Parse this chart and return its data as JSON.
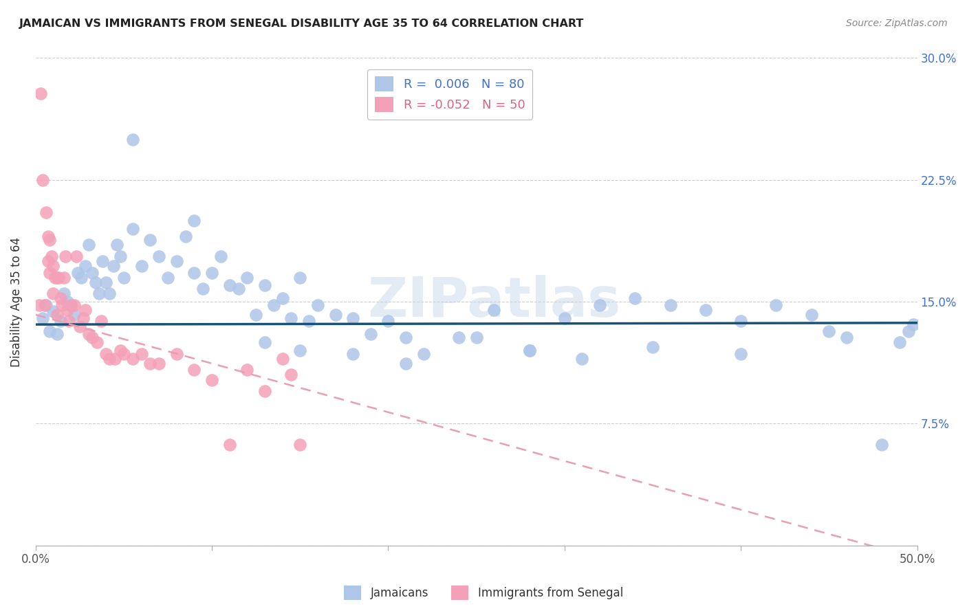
{
  "title": "JAMAICAN VS IMMIGRANTS FROM SENEGAL DISABILITY AGE 35 TO 64 CORRELATION CHART",
  "source": "Source: ZipAtlas.com",
  "xlabel": "",
  "ylabel": "Disability Age 35 to 64",
  "xlim": [
    0.0,
    0.5
  ],
  "ylim": [
    0.0,
    0.3
  ],
  "xticks": [
    0.0,
    0.1,
    0.2,
    0.3,
    0.4,
    0.5
  ],
  "xticklabels": [
    "0.0%",
    "",
    "",
    "",
    "",
    "50.0%"
  ],
  "ytick_positions": [
    0.0,
    0.075,
    0.15,
    0.225,
    0.3
  ],
  "ytick_labels_right": [
    "",
    "7.5%",
    "15.0%",
    "22.5%",
    "30.0%"
  ],
  "legend_r_blue": " 0.006",
  "legend_n_blue": "80",
  "legend_r_pink": "-0.052",
  "legend_n_pink": "50",
  "blue_color": "#aec6e8",
  "pink_color": "#f4a0b8",
  "blue_line_color": "#1a5276",
  "pink_line_color": "#e8a0b0",
  "watermark": "ZIPatlas",
  "blue_line_y_intercept": 0.136,
  "blue_line_slope": 0.002,
  "pink_line_y_intercept": 0.142,
  "pink_line_slope": -0.3,
  "blue_scatter_x": [
    0.004,
    0.006,
    0.008,
    0.01,
    0.012,
    0.014,
    0.016,
    0.018,
    0.02,
    0.022,
    0.024,
    0.026,
    0.028,
    0.03,
    0.032,
    0.034,
    0.036,
    0.038,
    0.04,
    0.042,
    0.044,
    0.046,
    0.048,
    0.05,
    0.055,
    0.06,
    0.065,
    0.07,
    0.075,
    0.08,
    0.085,
    0.09,
    0.095,
    0.1,
    0.105,
    0.11,
    0.115,
    0.12,
    0.125,
    0.13,
    0.135,
    0.14,
    0.145,
    0.15,
    0.155,
    0.16,
    0.17,
    0.18,
    0.19,
    0.2,
    0.21,
    0.22,
    0.24,
    0.26,
    0.28,
    0.3,
    0.32,
    0.34,
    0.36,
    0.38,
    0.4,
    0.42,
    0.44,
    0.46,
    0.055,
    0.09,
    0.13,
    0.15,
    0.18,
    0.21,
    0.25,
    0.28,
    0.31,
    0.35,
    0.4,
    0.45,
    0.48,
    0.49,
    0.495,
    0.498
  ],
  "blue_scatter_y": [
    0.14,
    0.148,
    0.132,
    0.144,
    0.13,
    0.138,
    0.155,
    0.15,
    0.148,
    0.142,
    0.168,
    0.165,
    0.172,
    0.185,
    0.168,
    0.162,
    0.155,
    0.175,
    0.162,
    0.155,
    0.172,
    0.185,
    0.178,
    0.165,
    0.195,
    0.172,
    0.188,
    0.178,
    0.165,
    0.175,
    0.19,
    0.2,
    0.158,
    0.168,
    0.178,
    0.16,
    0.158,
    0.165,
    0.142,
    0.16,
    0.148,
    0.152,
    0.14,
    0.165,
    0.138,
    0.148,
    0.142,
    0.14,
    0.13,
    0.138,
    0.128,
    0.118,
    0.128,
    0.145,
    0.12,
    0.14,
    0.148,
    0.152,
    0.148,
    0.145,
    0.138,
    0.148,
    0.142,
    0.128,
    0.25,
    0.168,
    0.125,
    0.12,
    0.118,
    0.112,
    0.128,
    0.12,
    0.115,
    0.122,
    0.118,
    0.132,
    0.062,
    0.125,
    0.132,
    0.136
  ],
  "pink_scatter_x": [
    0.002,
    0.003,
    0.004,
    0.005,
    0.006,
    0.007,
    0.007,
    0.008,
    0.008,
    0.009,
    0.01,
    0.01,
    0.011,
    0.012,
    0.012,
    0.013,
    0.014,
    0.015,
    0.016,
    0.017,
    0.018,
    0.019,
    0.02,
    0.022,
    0.023,
    0.025,
    0.027,
    0.028,
    0.03,
    0.032,
    0.035,
    0.037,
    0.04,
    0.042,
    0.045,
    0.048,
    0.05,
    0.055,
    0.06,
    0.065,
    0.07,
    0.08,
    0.09,
    0.1,
    0.11,
    0.12,
    0.13,
    0.14,
    0.145,
    0.15
  ],
  "pink_scatter_y": [
    0.148,
    0.278,
    0.225,
    0.148,
    0.205,
    0.19,
    0.175,
    0.188,
    0.168,
    0.178,
    0.172,
    0.155,
    0.165,
    0.165,
    0.142,
    0.165,
    0.152,
    0.148,
    0.165,
    0.178,
    0.145,
    0.138,
    0.148,
    0.148,
    0.178,
    0.135,
    0.14,
    0.145,
    0.13,
    0.128,
    0.125,
    0.138,
    0.118,
    0.115,
    0.115,
    0.12,
    0.118,
    0.115,
    0.118,
    0.112,
    0.112,
    0.118,
    0.108,
    0.102,
    0.062,
    0.108,
    0.095,
    0.115,
    0.105,
    0.062
  ]
}
